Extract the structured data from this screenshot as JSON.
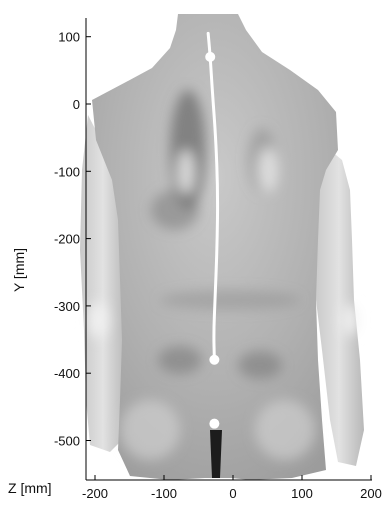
{
  "chart_data": {
    "type": "scatter",
    "title": "",
    "xlabel": "",
    "ylabel": "Y [mm]",
    "corner_label": "Z [mm]",
    "xlim": [
      -210,
      210
    ],
    "ylim": [
      -555,
      140
    ],
    "x_ticks": [
      -200,
      -100,
      0,
      100,
      200
    ],
    "y_ticks": [
      100,
      0,
      -100,
      -200,
      -300,
      -400,
      -500
    ],
    "spine_curve": [
      {
        "x": -36,
        "y": 105
      },
      {
        "x": -33,
        "y": 70
      },
      {
        "x": -30,
        "y": 20
      },
      {
        "x": -25,
        "y": -50
      },
      {
        "x": -22,
        "y": -130
      },
      {
        "x": -23,
        "y": -210
      },
      {
        "x": -26,
        "y": -290
      },
      {
        "x": -28,
        "y": -340
      },
      {
        "x": -27,
        "y": -380
      }
    ],
    "landmarks": [
      {
        "x": -33,
        "y": 70
      },
      {
        "x": -27,
        "y": -380
      },
      {
        "x": -27,
        "y": -475
      }
    ],
    "colors": {
      "body_light": "#dcdcdc",
      "body_mid": "#b4b4b4",
      "body_dark": "#6e6e6e",
      "spine_line": "#ffffff",
      "axis": "#000000"
    }
  }
}
